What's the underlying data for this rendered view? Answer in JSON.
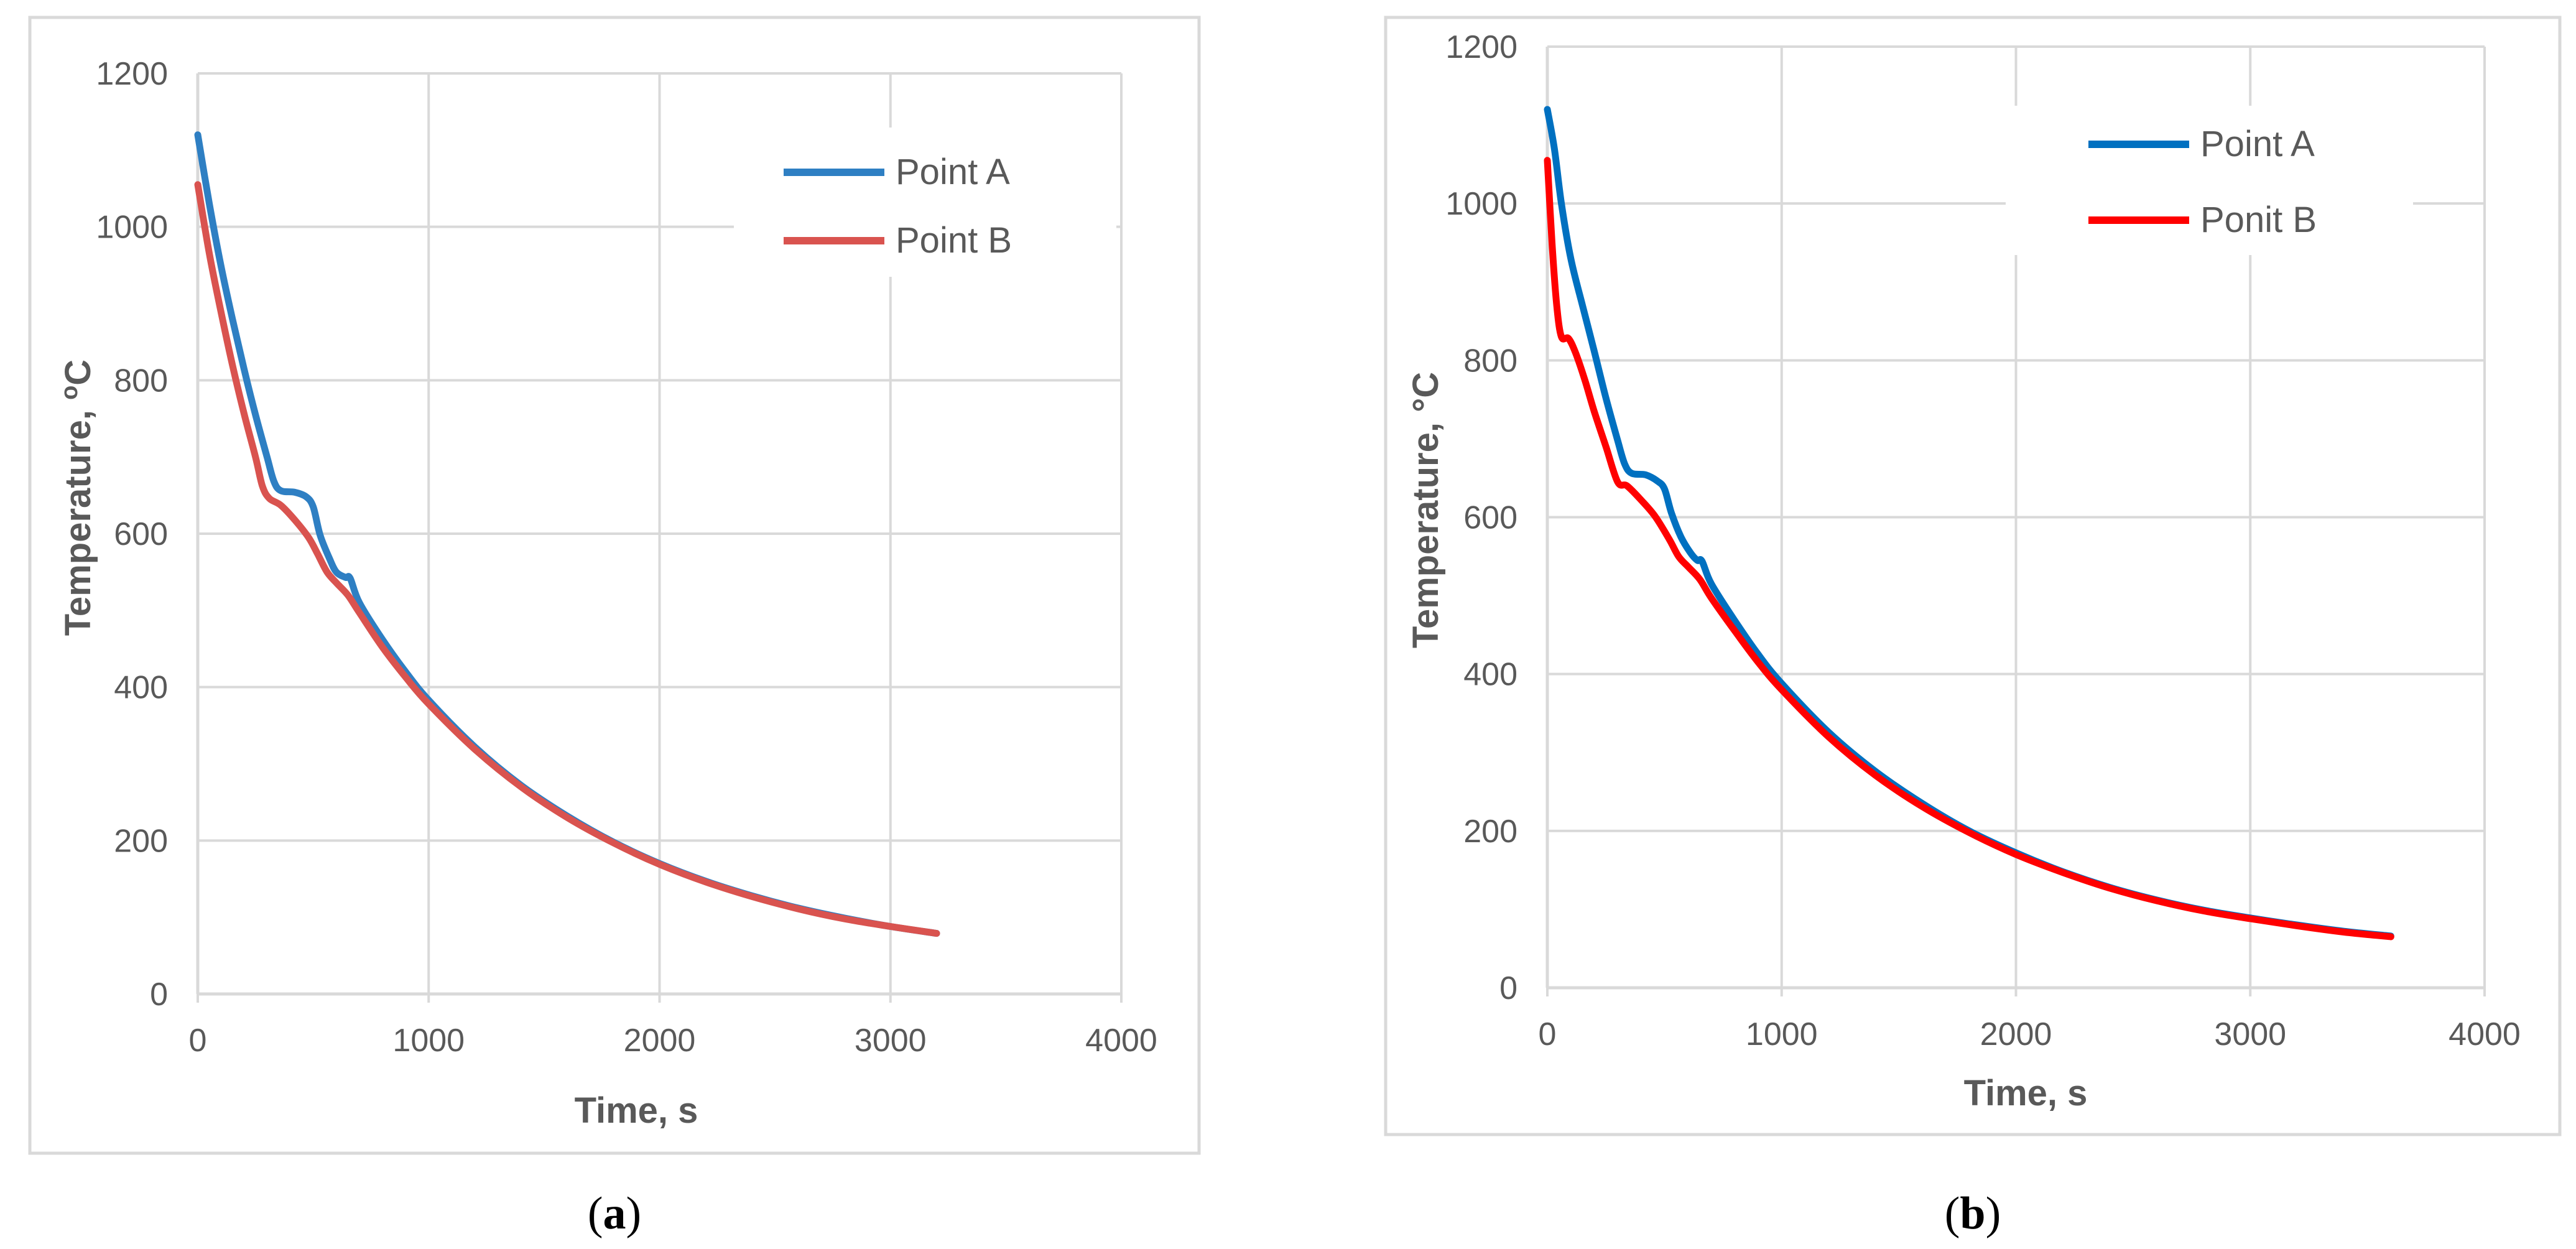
{
  "chart_data": [
    {
      "type": "line",
      "panel_label": "a",
      "xlabel": "Time, s",
      "ylabel": "Temperature, oC",
      "xlim": [
        0,
        4000
      ],
      "ylim": [
        0,
        1200
      ],
      "x_ticks": [
        "0",
        "1000",
        "2000",
        "3000",
        "4000"
      ],
      "y_ticks": [
        "0",
        "200",
        "400",
        "600",
        "800",
        "1000",
        "1200"
      ],
      "grid": true,
      "legend_position": "top-right",
      "series": [
        {
          "name": "Point A",
          "color": "#2E7FC3",
          "points": [
            [
              0,
              1120
            ],
            [
              50,
              1030
            ],
            [
              100,
              950
            ],
            [
              150,
              880
            ],
            [
              200,
              815
            ],
            [
              250,
              755
            ],
            [
              300,
              700
            ],
            [
              330,
              668
            ],
            [
              360,
              656
            ],
            [
              420,
              654
            ],
            [
              470,
              648
            ],
            [
              500,
              635
            ],
            [
              530,
              598
            ],
            [
              570,
              568
            ],
            [
              600,
              550
            ],
            [
              640,
              543
            ],
            [
              660,
              542
            ],
            [
              700,
              510
            ],
            [
              800,
              462
            ],
            [
              900,
              420
            ],
            [
              1000,
              383
            ],
            [
              1200,
              322
            ],
            [
              1400,
              272
            ],
            [
              1600,
              232
            ],
            [
              1800,
              198
            ],
            [
              2000,
              170
            ],
            [
              2200,
              147
            ],
            [
              2400,
              128
            ],
            [
              2600,
              112
            ],
            [
              2800,
              99
            ],
            [
              3000,
              88
            ],
            [
              3200,
              79
            ]
          ]
        },
        {
          "name": "Point B",
          "color": "#D9534F",
          "points": [
            [
              0,
              1055
            ],
            [
              50,
              965
            ],
            [
              100,
              890
            ],
            [
              150,
              820
            ],
            [
              200,
              757
            ],
            [
              250,
              700
            ],
            [
              280,
              662
            ],
            [
              310,
              646
            ],
            [
              360,
              637
            ],
            [
              420,
              618
            ],
            [
              480,
              595
            ],
            [
              520,
              573
            ],
            [
              560,
              550
            ],
            [
              600,
              536
            ],
            [
              650,
              520
            ],
            [
              700,
              497
            ],
            [
              800,
              452
            ],
            [
              900,
              413
            ],
            [
              1000,
              378
            ],
            [
              1200,
              319
            ],
            [
              1400,
              270
            ],
            [
              1600,
              230
            ],
            [
              1800,
              197
            ],
            [
              2000,
              169
            ],
            [
              2200,
              146
            ],
            [
              2400,
              127
            ],
            [
              2600,
              111
            ],
            [
              2800,
              98
            ],
            [
              3000,
              88
            ],
            [
              3200,
              79
            ]
          ]
        }
      ]
    },
    {
      "type": "line",
      "panel_label": "b",
      "xlabel": "Time, s",
      "ylabel": "Temperature, °C",
      "xlim": [
        0,
        4000
      ],
      "ylim": [
        0,
        1200
      ],
      "x_ticks": [
        "0",
        "1000",
        "2000",
        "3000",
        "4000"
      ],
      "y_ticks": [
        "0",
        "200",
        "400",
        "600",
        "800",
        "1000",
        "1200"
      ],
      "grid": true,
      "legend_position": "top-right",
      "series": [
        {
          "name": "Point A",
          "color": "#0070C0",
          "points": [
            [
              0,
              1120
            ],
            [
              30,
              1070
            ],
            [
              60,
              1000
            ],
            [
              100,
              930
            ],
            [
              150,
              870
            ],
            [
              200,
              812
            ],
            [
              250,
              752
            ],
            [
              300,
              698
            ],
            [
              330,
              668
            ],
            [
              360,
              656
            ],
            [
              420,
              654
            ],
            [
              470,
              646
            ],
            [
              500,
              636
            ],
            [
              530,
              605
            ],
            [
              570,
              575
            ],
            [
              610,
              555
            ],
            [
              640,
              545
            ],
            [
              660,
              544
            ],
            [
              700,
              515
            ],
            [
              800,
              468
            ],
            [
              900,
              425
            ],
            [
              1000,
              388
            ],
            [
              1200,
              326
            ],
            [
              1400,
              276
            ],
            [
              1600,
              235
            ],
            [
              1800,
              200
            ],
            [
              2000,
              172
            ],
            [
              2200,
              148
            ],
            [
              2400,
              128
            ],
            [
              2600,
              112
            ],
            [
              2800,
              99
            ],
            [
              3000,
              89
            ],
            [
              3200,
              80
            ],
            [
              3400,
              72
            ],
            [
              3600,
              66
            ]
          ]
        },
        {
          "name": "Ponit B",
          "color": "#FF0000",
          "points": [
            [
              0,
              1055
            ],
            [
              20,
              950
            ],
            [
              40,
              870
            ],
            [
              60,
              830
            ],
            [
              90,
              828
            ],
            [
              120,
              810
            ],
            [
              160,
              775
            ],
            [
              200,
              735
            ],
            [
              250,
              690
            ],
            [
              300,
              645
            ],
            [
              340,
              640
            ],
            [
              400,
              622
            ],
            [
              460,
              601
            ],
            [
              520,
              572
            ],
            [
              560,
              550
            ],
            [
              600,
              537
            ],
            [
              650,
              521
            ],
            [
              700,
              497
            ],
            [
              800,
              455
            ],
            [
              900,
              415
            ],
            [
              1000,
              380
            ],
            [
              1200,
              320
            ],
            [
              1400,
              271
            ],
            [
              1600,
              231
            ],
            [
              1800,
              198
            ],
            [
              2000,
              170
            ],
            [
              2200,
              147
            ],
            [
              2400,
              127
            ],
            [
              2600,
              111
            ],
            [
              2800,
              98
            ],
            [
              3000,
              88
            ],
            [
              3200,
              79
            ],
            [
              3400,
              71
            ],
            [
              3600,
              65
            ]
          ]
        }
      ]
    }
  ]
}
